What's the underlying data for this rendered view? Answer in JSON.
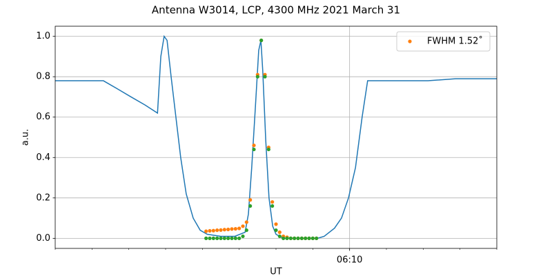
{
  "chart_data": {
    "type": "line",
    "title": "Antenna W3014, LCP, 4300 MHz 2021 March 31",
    "xlabel": "UT",
    "ylabel": "a.u.",
    "xlim": [
      2,
      14
    ],
    "ylim": [
      -0.05,
      1.05
    ],
    "xticks": [
      {
        "value": 10,
        "label": "06:10"
      }
    ],
    "xminorticks": [
      2,
      3,
      4,
      5,
      6,
      7,
      8,
      9,
      10,
      11,
      12,
      13,
      14
    ],
    "yticks": [
      {
        "value": 0,
        "label": "0.0"
      },
      {
        "value": 0.2,
        "label": "0.2"
      },
      {
        "value": 0.4,
        "label": "0.4"
      },
      {
        "value": 0.6,
        "label": "0.6"
      },
      {
        "value": 0.8,
        "label": "0.8"
      },
      {
        "value": 1.0,
        "label": "1.0"
      }
    ],
    "grid": true,
    "legend": "upper right",
    "series": [
      {
        "color": "#1f77b4",
        "style": "line",
        "x": [
          2.0,
          2.38,
          2.75,
          3.13,
          3.31,
          3.69,
          4.06,
          4.44,
          4.78,
          4.87,
          4.96,
          5.04,
          5.15,
          5.28,
          5.41,
          5.56,
          5.75,
          5.94,
          6.13,
          6.5,
          6.88,
          7.16,
          7.25,
          7.34,
          7.44,
          7.53,
          7.59,
          7.64,
          7.72,
          7.81,
          7.91,
          8.0,
          8.19,
          8.56,
          9.13,
          9.31,
          9.59,
          9.78,
          9.97,
          10.16,
          10.34,
          10.49,
          10.63,
          11.38,
          12.13,
          12.88,
          13.63,
          14.0
        ],
        "values": [
          0.78,
          0.78,
          0.78,
          0.78,
          0.78,
          0.74,
          0.7,
          0.66,
          0.62,
          0.9,
          1.0,
          0.98,
          0.8,
          0.6,
          0.4,
          0.22,
          0.1,
          0.04,
          0.02,
          0.01,
          0.01,
          0.03,
          0.12,
          0.35,
          0.65,
          0.93,
          0.98,
          0.83,
          0.49,
          0.2,
          0.06,
          0.02,
          0.0,
          0.0,
          0.0,
          0.01,
          0.05,
          0.1,
          0.2,
          0.35,
          0.6,
          0.78,
          0.78,
          0.78,
          0.78,
          0.79,
          0.79,
          0.79
        ]
      },
      {
        "name": "FWHM 1.52˚",
        "color": "#ff7f0e",
        "style": "points",
        "x": [
          6.1,
          6.2,
          6.3,
          6.4,
          6.5,
          6.6,
          6.7,
          6.8,
          6.9,
          7.0,
          7.1,
          7.2,
          7.3,
          7.4,
          7.5,
          7.6,
          7.7,
          7.8,
          7.9,
          8.0,
          8.1,
          8.2,
          8.3,
          8.4,
          8.5,
          8.6,
          8.7,
          8.8,
          8.9,
          9.0,
          9.1
        ],
        "values": [
          0.035,
          0.037,
          0.038,
          0.04,
          0.041,
          0.043,
          0.044,
          0.046,
          0.047,
          0.049,
          0.06,
          0.08,
          0.19,
          0.46,
          0.81,
          0.98,
          0.81,
          0.45,
          0.18,
          0.07,
          0.03,
          0.01,
          0.005,
          0,
          0,
          0,
          0,
          0,
          0,
          0,
          0
        ]
      },
      {
        "color": "#2ca02c",
        "style": "points",
        "x": [
          6.1,
          6.2,
          6.3,
          6.4,
          6.5,
          6.6,
          6.7,
          6.8,
          6.9,
          7.0,
          7.1,
          7.2,
          7.3,
          7.4,
          7.5,
          7.6,
          7.7,
          7.8,
          7.9,
          8.0,
          8.1,
          8.2,
          8.3,
          8.4,
          8.5,
          8.6,
          8.7,
          8.8,
          8.9,
          9.0,
          9.1
        ],
        "values": [
          0,
          0,
          0,
          0,
          0,
          0,
          0,
          0,
          0,
          0,
          0.01,
          0.04,
          0.16,
          0.44,
          0.8,
          0.98,
          0.8,
          0.44,
          0.16,
          0.04,
          0.01,
          0,
          0,
          0,
          0,
          0,
          0,
          0,
          0,
          0,
          0
        ]
      }
    ]
  }
}
